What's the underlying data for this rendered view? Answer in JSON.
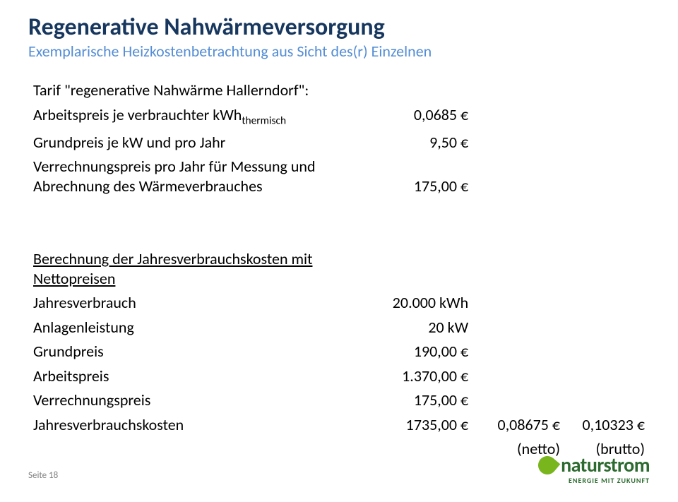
{
  "title": "Regenerative Nahwärmeversorgung",
  "subtitle": "Exemplarische Heizkostenbetrachtung aus Sicht des(r) Einzelnen",
  "tariff_heading": "Tarif \"regenerative Nahwärme Hallerndorf\":",
  "tariff_rows": [
    {
      "label_html": "Arbeitspreis je verbrauchter kWh<span class=\"sub\">thermisch</span>",
      "value": "0,0685 €"
    },
    {
      "label_html": "Grundpreis je kW und pro Jahr",
      "value": "9,50 €"
    },
    {
      "label_html": "Verrechnungspreis pro Jahr für Messung und Abrechnung des Wärmeverbrauches",
      "value": "175,00 €"
    }
  ],
  "calc_heading": "Berechnung der Jahresverbrauchskosten mit Nettopreisen",
  "calc_rows": [
    {
      "label": "Jahresverbrauch",
      "value": "20.000 kWh"
    },
    {
      "label": "Anlagenleistung",
      "value": "20 kW"
    },
    {
      "label": "Grundpreis",
      "value": "190,00 €"
    },
    {
      "label": "Arbeitspreis",
      "value": "1.370,00 €"
    },
    {
      "label": "Verrechnungspreis",
      "value": "175,00 €"
    }
  ],
  "total_row": {
    "label": "Jahresverbrauchskosten",
    "value": "1735,00 €",
    "netto": "0,08675 €",
    "brutto": "0,10323 €"
  },
  "unit_row": {
    "netto": "(netto)",
    "brutto": "(brutto)"
  },
  "page_label": "Seite 18",
  "logo": {
    "main": "naturstrom",
    "sub": "ENERGIE MIT ZUKUNFT"
  },
  "colors": {
    "title": "#17375e",
    "subtitle": "#558ed5",
    "logo_green_dark": "#2c6b2f",
    "logo_green_light": "#79b51c",
    "page_num": "#808080",
    "bg": "#ffffff"
  }
}
